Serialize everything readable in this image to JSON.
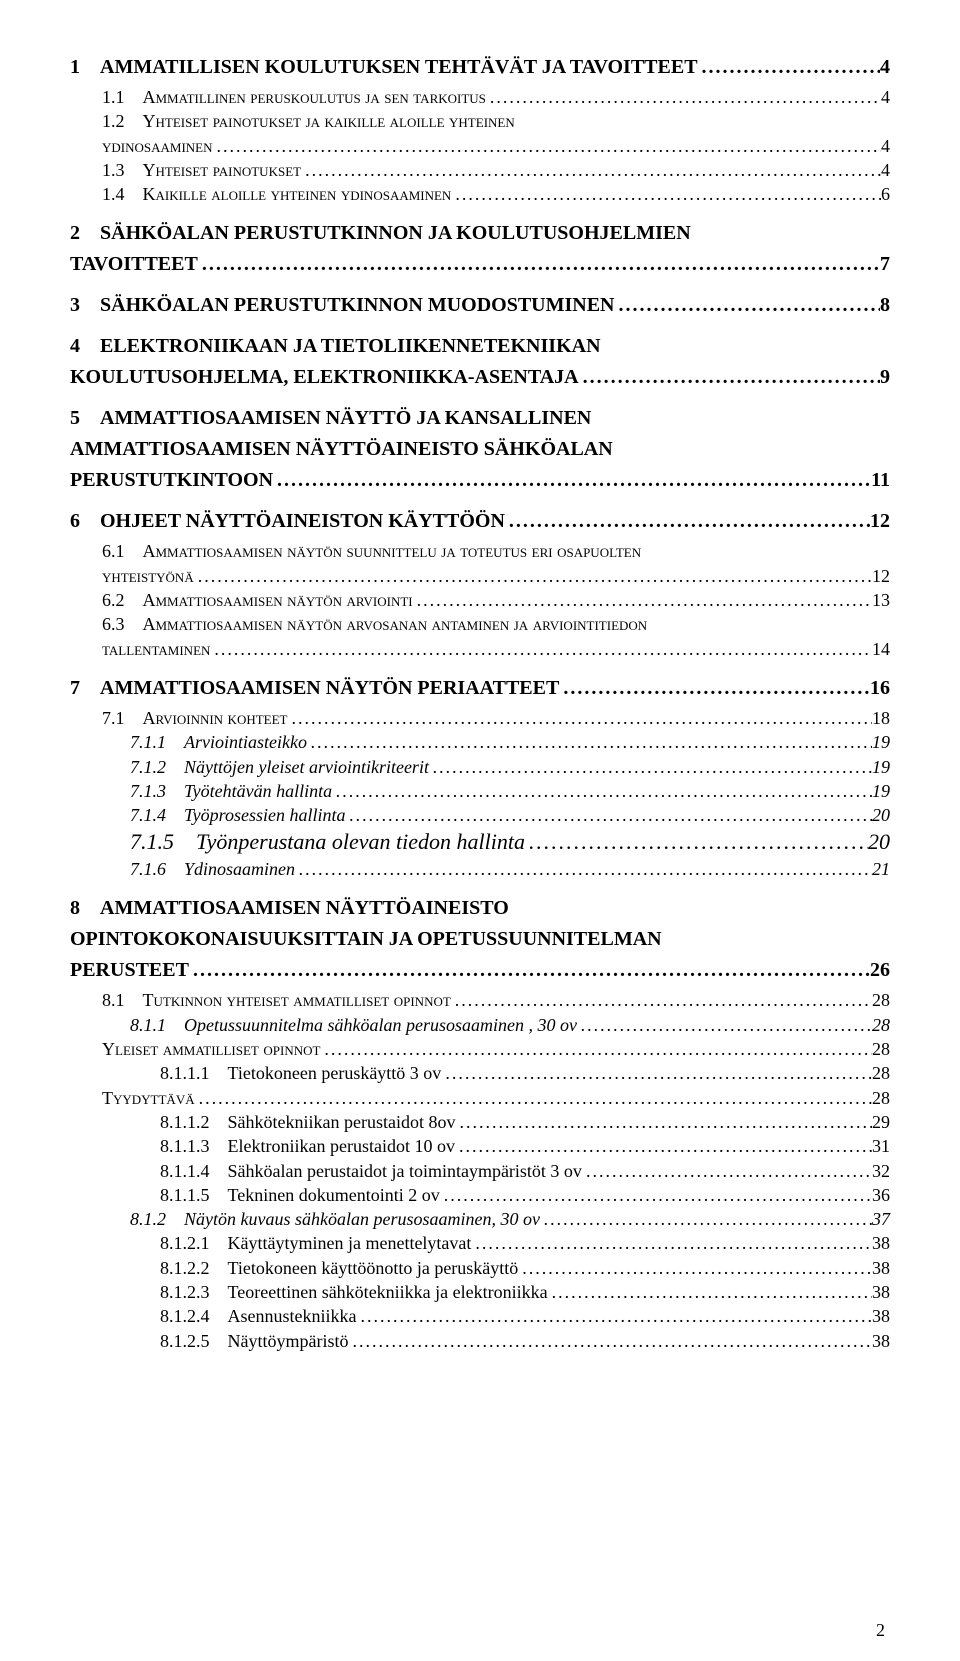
{
  "page_number": "2",
  "entries": [
    {
      "cls": "lvl1",
      "num": "1    ",
      "label": "AMMATILLISEN KOULUTUKSEN TEHTÄVÄT JA TAVOITTEET",
      "page": " 4"
    },
    {
      "cls": "lvl2sc",
      "num": "1.1    ",
      "label": "Ammatillinen peruskoulutus ja sen tarkoitus",
      "page": " 4"
    },
    {
      "cls": "lvl2sc",
      "num": "1.2    ",
      "label": "Yhteiset painotukset ja kaikille aloille yhteinen",
      "page": ""
    },
    {
      "cls": "lvl2sc",
      "num": "",
      "label": "ydinosaaminen",
      "page": " 4",
      "cont": true
    },
    {
      "cls": "lvl2sc",
      "num": "1.3    ",
      "label": "Yhteiset painotukset",
      "page": " 4"
    },
    {
      "cls": "lvl2sc",
      "num": "1.4    ",
      "label": "Kaikille aloille yhteinen ydinosaaminen",
      "page": " 6"
    },
    {
      "cls": "lvl1",
      "num": "2    ",
      "label": "SÄHKÖALAN PERUSTUTKINNON JA KOULUTUSOHJELMIEN",
      "page": ""
    },
    {
      "cls": "lvl1",
      "num": "",
      "label": "TAVOITTEET",
      "page": " 7",
      "cont": true
    },
    {
      "cls": "lvl1",
      "num": "3    ",
      "label": "SÄHKÖALAN PERUSTUTKINNON MUODOSTUMINEN",
      "page": " 8"
    },
    {
      "cls": "lvl1",
      "num": "4    ",
      "label": "ELEKTRONIIKAAN JA TIETOLIIKENNETEKNIIKAN",
      "page": ""
    },
    {
      "cls": "lvl1",
      "num": "",
      "label": "KOULUTUSOHJELMA, ELEKTRONIIKKA-ASENTAJA",
      "page": " 9",
      "cont": true
    },
    {
      "cls": "lvl1",
      "num": "5    ",
      "label": "AMMATTIOSAAMISEN NÄYTTÖ JA KANSALLINEN",
      "page": ""
    },
    {
      "cls": "lvl1",
      "num": "",
      "label": "AMMATTIOSAAMISEN NÄYTTÖAINEISTO SÄHKÖALAN",
      "page": "",
      "cont": true
    },
    {
      "cls": "lvl1",
      "num": "",
      "label": "PERUSTUTKINTOON",
      "page": "11",
      "cont": true
    },
    {
      "cls": "lvl1",
      "num": "6    ",
      "label": "OHJEET NÄYTTÖAINEISTON KÄYTTÖÖN",
      "page": "12"
    },
    {
      "cls": "lvl2sc",
      "num": "6.1    ",
      "label": "Ammattiosaamisen näytön suunnittelu ja toteutus eri osapuolten",
      "page": ""
    },
    {
      "cls": "lvl2sc",
      "num": "",
      "label": "yhteistyönä",
      "page": "12",
      "cont": true
    },
    {
      "cls": "lvl2sc",
      "num": "6.2    ",
      "label": "Ammattiosaamisen näytön arviointi",
      "page": "13"
    },
    {
      "cls": "lvl2sc",
      "num": "6.3    ",
      "label": "Ammattiosaamisen näytön arvosanan antaminen ja arviointitiedon",
      "page": ""
    },
    {
      "cls": "lvl2sc",
      "num": "",
      "label": "tallentaminen",
      "page": "14",
      "cont": true
    },
    {
      "cls": "lvl1",
      "num": "7    ",
      "label": "AMMATTIOSAAMISEN NÄYTÖN PERIAATTEET",
      "page": "16"
    },
    {
      "cls": "lvl2sc",
      "num": "7.1    ",
      "label": "Arvioinnin kohteet",
      "page": "18"
    },
    {
      "cls": "lvl3",
      "num": "7.1.1    ",
      "label": "Arviointiasteikko",
      "page": "19"
    },
    {
      "cls": "lvl3",
      "num": "7.1.2    ",
      "label": "Näyttöjen yleiset arviointikriteerit",
      "page": "19"
    },
    {
      "cls": "lvl3",
      "num": "7.1.3    ",
      "label": "Työtehtävän hallinta",
      "page": "19"
    },
    {
      "cls": "lvl3",
      "num": "7.1.4    ",
      "label": "Työprosessien hallinta",
      "page": "20"
    },
    {
      "cls": "lvl3big",
      "num": "7.1.5    ",
      "label": "Työnperustana olevan tiedon hallinta",
      "page": "20"
    },
    {
      "cls": "lvl3",
      "num": "7.1.6    ",
      "label": "Ydinosaaminen",
      "page": "21"
    },
    {
      "cls": "lvl1",
      "num": "8    ",
      "label": "AMMATTIOSAAMISEN NÄYTTÖAINEISTO",
      "page": ""
    },
    {
      "cls": "lvl1",
      "num": "",
      "label": "OPINTOKOKONAISUUKSITTAIN JA OPETUSSUUNNITELMAN",
      "page": "",
      "cont": true
    },
    {
      "cls": "lvl1",
      "num": "",
      "label": "PERUSTEET",
      "page": "26",
      "cont": true
    },
    {
      "cls": "lvl2sc",
      "num": "8.1    ",
      "label": "Tutkinnon yhteiset ammatilliset opinnot",
      "page": "28"
    },
    {
      "cls": "lvl3",
      "num": "8.1.1    ",
      "label": "Opetussuunnitelma sähköalan perusosaaminen , 30 ov",
      "page": "28"
    },
    {
      "cls": "flat",
      "num": "",
      "label": "Yleiset ammatilliset opinnot",
      "page": "28"
    },
    {
      "cls": "lvl4",
      "num": "8.1.1.1    ",
      "label": "Tietokoneen peruskäyttö 3 ov",
      "page": "28"
    },
    {
      "cls": "flat",
      "num": "",
      "label": "Tyydyttävä",
      "page": "28"
    },
    {
      "cls": "lvl4",
      "num": "8.1.1.2    ",
      "label": "Sähkötekniikan perustaidot 8ov",
      "page": "29"
    },
    {
      "cls": "lvl4",
      "num": "8.1.1.3    ",
      "label": "Elektroniikan perustaidot 10 ov",
      "page": "31"
    },
    {
      "cls": "lvl4",
      "num": "8.1.1.4    ",
      "label": "Sähköalan perustaidot ja toimintaympäristöt 3 ov",
      "page": "32"
    },
    {
      "cls": "lvl4",
      "num": "8.1.1.5    ",
      "label": "Tekninen dokumentointi 2 ov",
      "page": "36"
    },
    {
      "cls": "lvl3",
      "num": "8.1.2    ",
      "label": "Näytön kuvaus sähköalan perusosaaminen, 30 ov",
      "page": "37"
    },
    {
      "cls": "lvl4",
      "num": "8.1.2.1    ",
      "label": "Käyttäytyminen ja menettelytavat",
      "page": "38"
    },
    {
      "cls": "lvl4",
      "num": "8.1.2.2    ",
      "label": "Tietokoneen käyttöönotto ja peruskäyttö",
      "page": "38"
    },
    {
      "cls": "lvl4",
      "num": "8.1.2.3    ",
      "label": "Teoreettinen sähkötekniikka ja elektroniikka",
      "page": "38"
    },
    {
      "cls": "lvl4",
      "num": "8.1.2.4    ",
      "label": "Asennustekniikka",
      "page": "38"
    },
    {
      "cls": "lvl4",
      "num": "8.1.2.5    ",
      "label": "Näyttöympäristö",
      "page": "38"
    }
  ]
}
